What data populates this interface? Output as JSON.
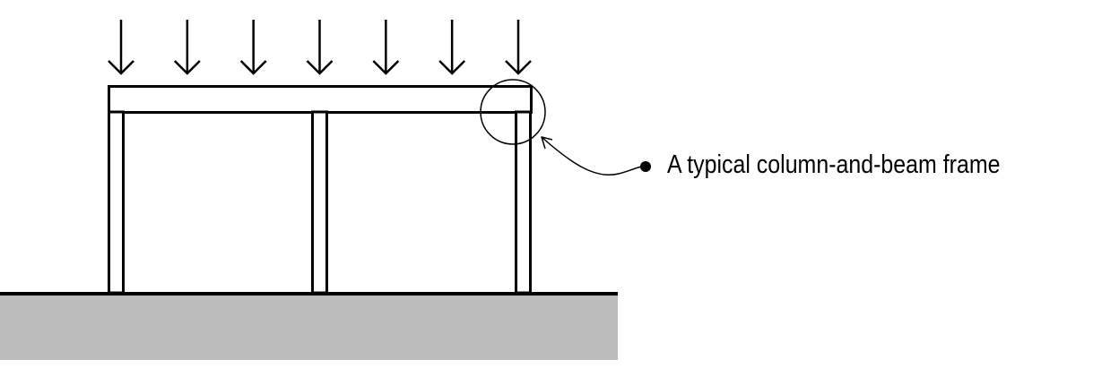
{
  "callout": {
    "label": "A typical column-and-beam frame"
  },
  "load_arrows": {
    "count": 7
  },
  "colors": {
    "ink": "#000000",
    "ground": "#bcbcbc",
    "background": "#ffffff"
  }
}
